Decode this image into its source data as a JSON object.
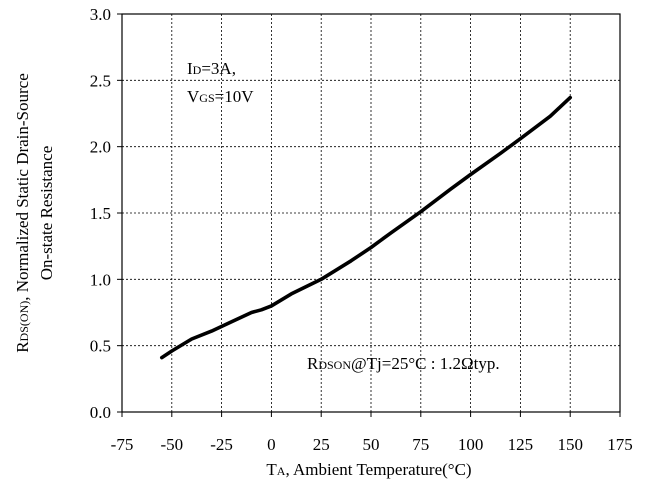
{
  "chart_data": {
    "type": "line",
    "xlim": [
      -75,
      175
    ],
    "ylim": [
      0.0,
      3.0
    ],
    "x_ticks": [
      "-75",
      "-50",
      "-25",
      "0",
      "25",
      "50",
      "75",
      "100",
      "125",
      "150",
      "175"
    ],
    "y_ticks": [
      "0.0",
      "0.5",
      "1.0",
      "1.5",
      "2.0",
      "2.5",
      "3.0"
    ],
    "grid": true,
    "xlabel": {
      "main": "T",
      "sub": "A",
      "rest": ", Ambient Temperature(°C)"
    },
    "ylabel": {
      "line1_main": "R",
      "line1_sub": "DS(ON)",
      "line1_rest": ", Normalized Static Drain-Source",
      "line2": "On-state Resistance"
    },
    "annotations": {
      "cond1_main": "I",
      "cond1_sub": "D",
      "cond1_rest": "=3A,",
      "cond2_main": "V",
      "cond2_sub": "GS",
      "cond2_rest": "=10V",
      "note_main": "R",
      "note_sub": "DSON",
      "note_rest": "@Tj=25°C : 1.2Ωtyp."
    },
    "series": [
      {
        "x": [
          -55,
          -50,
          -40,
          -30,
          -20,
          -10,
          -5,
          0,
          10,
          25,
          40,
          50,
          60,
          75,
          90,
          100,
          115,
          125,
          140,
          150
        ],
        "y": [
          0.41,
          0.46,
          0.55,
          0.61,
          0.68,
          0.75,
          0.77,
          0.8,
          0.89,
          1.0,
          1.14,
          1.24,
          1.35,
          1.51,
          1.68,
          1.79,
          1.95,
          2.06,
          2.23,
          2.37
        ]
      }
    ]
  }
}
